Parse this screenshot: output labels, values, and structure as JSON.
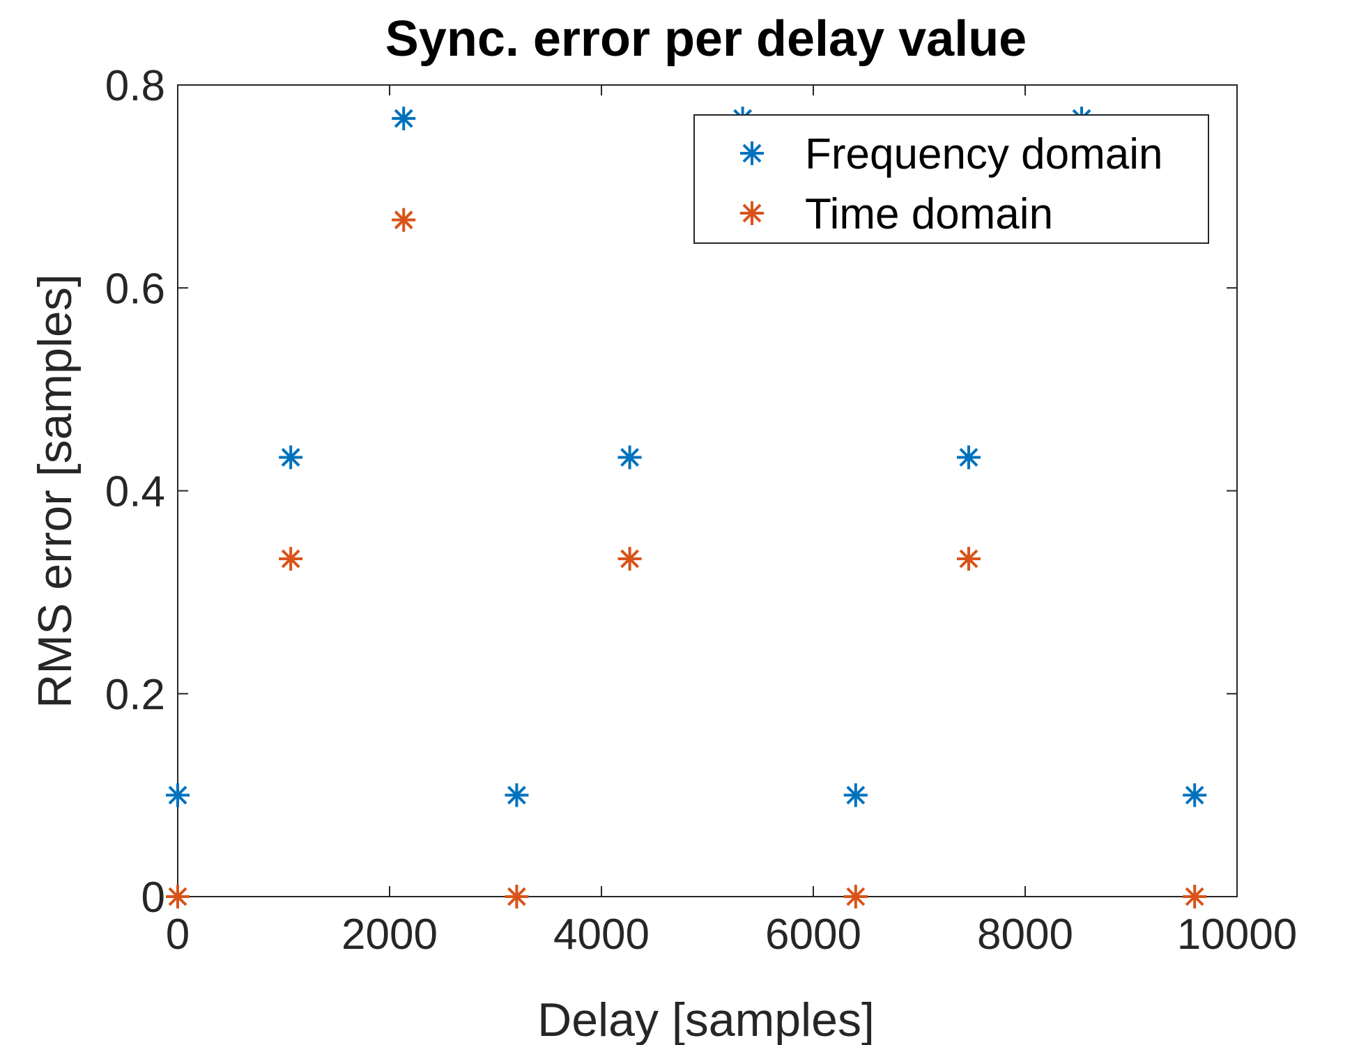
{
  "chart_data": {
    "type": "scatter",
    "title": "Sync. error per delay value",
    "xlabel": "Delay [samples]",
    "ylabel": "RMS error [samples]",
    "xlim": [
      0,
      10000
    ],
    "ylim": [
      0,
      0.8
    ],
    "xticks": [
      0,
      2000,
      4000,
      6000,
      8000,
      10000
    ],
    "yticks": [
      0,
      0.2,
      0.4,
      0.6,
      0.8
    ],
    "xtick_labels": [
      "0",
      "2000",
      "4000",
      "6000",
      "8000",
      "10000"
    ],
    "ytick_labels": [
      "0",
      "0.2",
      "0.4",
      "0.6",
      "0.8"
    ],
    "grid": false,
    "marker": "asterisk",
    "legend_position": "top-right",
    "series": [
      {
        "name": "Frequency domain",
        "color": "#0072BD",
        "x": [
          0,
          1067,
          2133,
          3200,
          4267,
          5333,
          6400,
          7467,
          8533,
          9600
        ],
        "y": [
          0.1,
          0.433,
          0.767,
          0.1,
          0.433,
          0.767,
          0.1,
          0.433,
          0.767,
          0.1
        ]
      },
      {
        "name": "Time domain",
        "color": "#D95319",
        "x": [
          0,
          1067,
          2133,
          3200,
          4267,
          6400,
          7467,
          9600
        ],
        "y": [
          0,
          0.333,
          0.667,
          0,
          0.333,
          0,
          0.333,
          0
        ]
      }
    ]
  }
}
